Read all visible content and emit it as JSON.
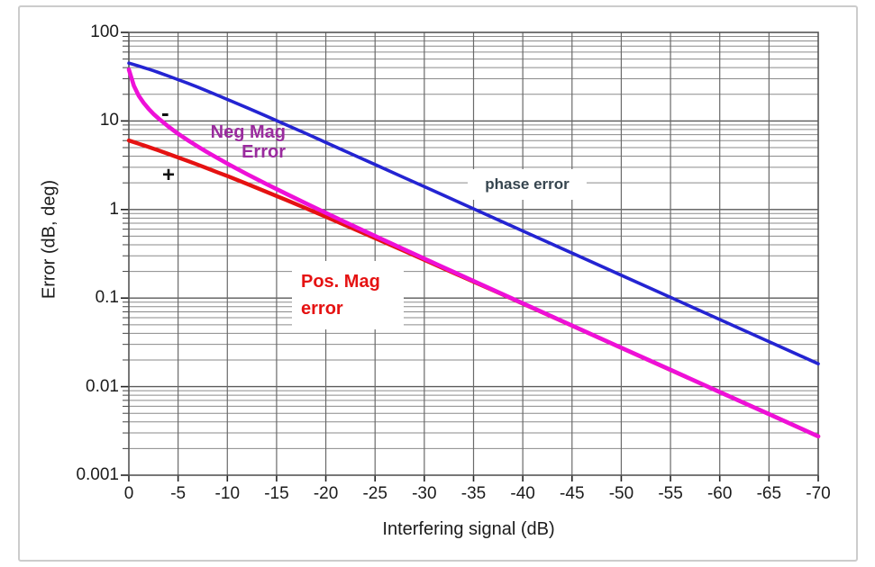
{
  "chart_data": {
    "type": "line",
    "title": "",
    "xlabel": "Interfering signal (dB)",
    "ylabel": "Error (dB, deg)",
    "x_axis": {
      "min": 0,
      "max": -70,
      "tick_step": -5,
      "tick_labels": [
        "0",
        "-5",
        "-10",
        "-15",
        "-20",
        "-25",
        "-30",
        "-35",
        "-40",
        "-45",
        "-50",
        "-55",
        "-60",
        "-65",
        "-70"
      ],
      "tick_values": [
        0,
        -5,
        -10,
        -15,
        -20,
        -25,
        -30,
        -35,
        -40,
        -45,
        -50,
        -55,
        -60,
        -65,
        -70
      ]
    },
    "y_axis": {
      "scale": "log",
      "min": 0.001,
      "max": 100,
      "tick_labels": [
        "100",
        "10",
        "1",
        "0.1",
        "0.01",
        "0.001"
      ],
      "tick_values": [
        100,
        10,
        1,
        0.1,
        0.01,
        0.001
      ]
    },
    "grid": {
      "vertical_every_dB": 5,
      "horizontal_log_minor": true,
      "legend": "none"
    },
    "series": [
      {
        "name": "Pos. Mag error",
        "color": "#e51212",
        "width": 4.4,
        "x": [
          0,
          -0.5,
          -1,
          -1.5,
          -2,
          -2.5,
          -3,
          -4,
          -5,
          -6,
          -7,
          -8,
          -9,
          -10,
          -12,
          -14,
          -16,
          -18,
          -20,
          -22,
          -25,
          -28,
          -30,
          -32,
          -35,
          -38,
          -40,
          -45,
          -50,
          -55,
          -60,
          -65,
          -70
        ],
        "y": [
          6.02,
          5.77,
          5.53,
          5.3,
          5.08,
          4.86,
          4.65,
          4.25,
          3.88,
          3.53,
          3.21,
          2.91,
          2.63,
          2.39,
          1.95,
          1.58,
          1.28,
          1.03,
          0.828,
          0.664,
          0.475,
          0.339,
          0.27,
          0.215,
          0.153,
          0.109,
          0.0864,
          0.0487,
          0.0274,
          0.0154,
          0.0087,
          0.0049,
          0.00274
        ]
      },
      {
        "name": "Neg Mag Error",
        "color": "#ee10d8",
        "width": 4.6,
        "x": [
          0,
          -0.25,
          -0.5,
          -1,
          -1.5,
          -2,
          -2.5,
          -3,
          -4,
          -5,
          -6,
          -7,
          -8,
          -9,
          -10,
          -12,
          -14,
          -16,
          -18,
          -20,
          -22,
          -25,
          -28,
          -30,
          -32,
          -35,
          -38,
          -40,
          -45,
          -50,
          -55,
          -60,
          -65,
          -70
        ],
        "y": [
          38,
          31,
          25.1,
          19.3,
          16.0,
          13.7,
          12.0,
          10.7,
          8.66,
          7.18,
          6.04,
          5.14,
          4.41,
          3.81,
          3.3,
          2.51,
          1.93,
          1.5,
          1.17,
          0.915,
          0.719,
          0.503,
          0.353,
          0.279,
          0.221,
          0.156,
          0.11,
          0.0873,
          0.049,
          0.0275,
          0.0155,
          0.0087,
          0.0049,
          0.00275
        ]
      },
      {
        "name": "phase error",
        "color": "#2424d2",
        "width": 3.6,
        "x": [
          0,
          -0.5,
          -1,
          -1.5,
          -2,
          -2.5,
          -3,
          -4,
          -5,
          -6,
          -7,
          -8,
          -9,
          -10,
          -12,
          -14,
          -16,
          -18,
          -20,
          -22,
          -25,
          -28,
          -30,
          -32,
          -35,
          -38,
          -40,
          -45,
          -50,
          -55,
          -60,
          -65,
          -70
        ],
        "y": [
          45,
          43.4,
          41.7,
          40.1,
          38.5,
          36.9,
          35.3,
          32.2,
          29.3,
          26.6,
          24.1,
          21.7,
          19.5,
          17.5,
          14.1,
          11.3,
          9.0,
          7.2,
          5.71,
          4.54,
          3.22,
          2.28,
          1.81,
          1.44,
          1.02,
          0.72,
          0.573,
          0.322,
          0.181,
          0.102,
          0.0573,
          0.0322,
          0.0181
        ]
      }
    ],
    "annotations": [
      {
        "text": "phase error",
        "color": "#36454f",
        "background": "white"
      },
      {
        "text": "Neg Mag\nError",
        "color": "#9a2b9e",
        "background": "none"
      },
      {
        "text": "Pos. Mag\nerror",
        "color": "#e51212",
        "background": "white"
      },
      {
        "text": "-",
        "color": "#111111"
      },
      {
        "text": "+",
        "color": "#111111"
      }
    ]
  },
  "labels": {
    "xlabel": "Interfering signal (dB)",
    "ylabel": "Error (dB, deg)",
    "phase": "phase error",
    "neg_line1": "Neg Mag",
    "neg_line2": "Error",
    "pos_line1": "Pos. Mag",
    "pos_line2": "error",
    "minus": "-",
    "plus": "+"
  },
  "colors": {
    "phase_line": "#2424d2",
    "neg_mag_line": "#ee10d8",
    "pos_mag_line": "#e51212",
    "grid_major": "#5a5a5a",
    "grid_minor": "#8a8a8a",
    "frame_border": "#cccccc",
    "text": "#1b1b1b"
  }
}
